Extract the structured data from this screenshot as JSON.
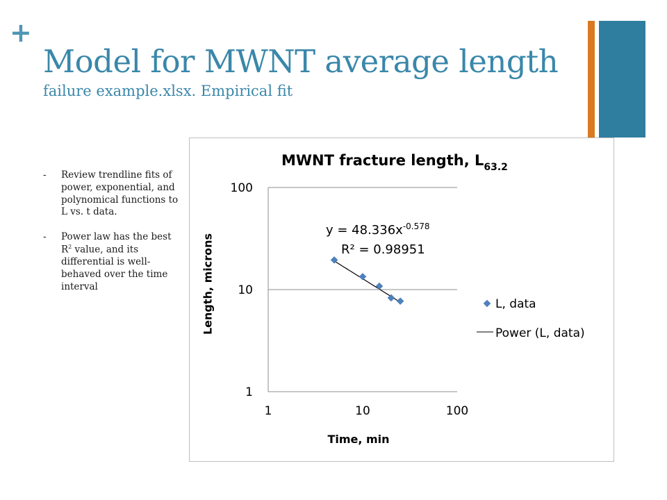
{
  "slide": {
    "plus": "+",
    "title": "Model for MWNT average length",
    "subtitle": "failure example.xlsx. Empirical fit",
    "accent_orange": "#d97a21",
    "accent_blue": "#2f7ea0"
  },
  "bullets": [
    {
      "dash": "-",
      "pre": "Review trendline fits of power, exponential, and polynomical functions to L vs. t data.",
      "sup": "",
      "post": ""
    },
    {
      "dash": "-",
      "pre": "Power law has the best R",
      "sup": "2",
      "post": " value, and its differential is well-behaved over the time interval"
    }
  ],
  "chart_data": {
    "type": "scatter",
    "title": "MWNT fracture length, L",
    "title_subscript": "63.2",
    "xlabel": "Time, min",
    "ylabel": "Length, microns",
    "x_scale": "log",
    "y_scale": "log",
    "xlim": [
      1,
      100
    ],
    "ylim": [
      1,
      100
    ],
    "x_ticks": [
      "1",
      "10",
      "100"
    ],
    "y_ticks": [
      "100",
      "10",
      "1"
    ],
    "grid": "horizontal",
    "legend_position": "right",
    "series": [
      {
        "name": "L, data",
        "marker": "diamond",
        "color": "#4f81bd",
        "x": [
          5,
          10,
          15,
          20,
          25
        ],
        "y": [
          19.5,
          13.4,
          10.8,
          8.3,
          7.7
        ]
      },
      {
        "name": "Power (L, data)",
        "type": "trendline",
        "color": "#000000",
        "a": 48.336,
        "b": -0.578,
        "x_range": [
          5,
          25
        ]
      }
    ],
    "equation": {
      "base": "y = 48.336x",
      "exponent": "-0.578"
    },
    "r2": {
      "label": "R² = 0.98951"
    }
  }
}
